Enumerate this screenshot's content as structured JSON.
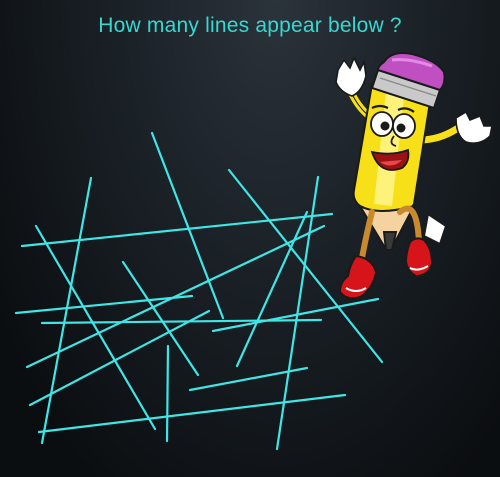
{
  "puzzle": {
    "question": "How many lines appear below ?",
    "line_color": "#3fe6e6",
    "text_color": "#37d8d0",
    "background": "#14191e"
  },
  "illustration": {
    "subject": "cartoon-pencil-mascot",
    "body_color": "#f7e017",
    "eraser_color": "#c04fc2",
    "shoe_color": "#d8141b"
  }
}
